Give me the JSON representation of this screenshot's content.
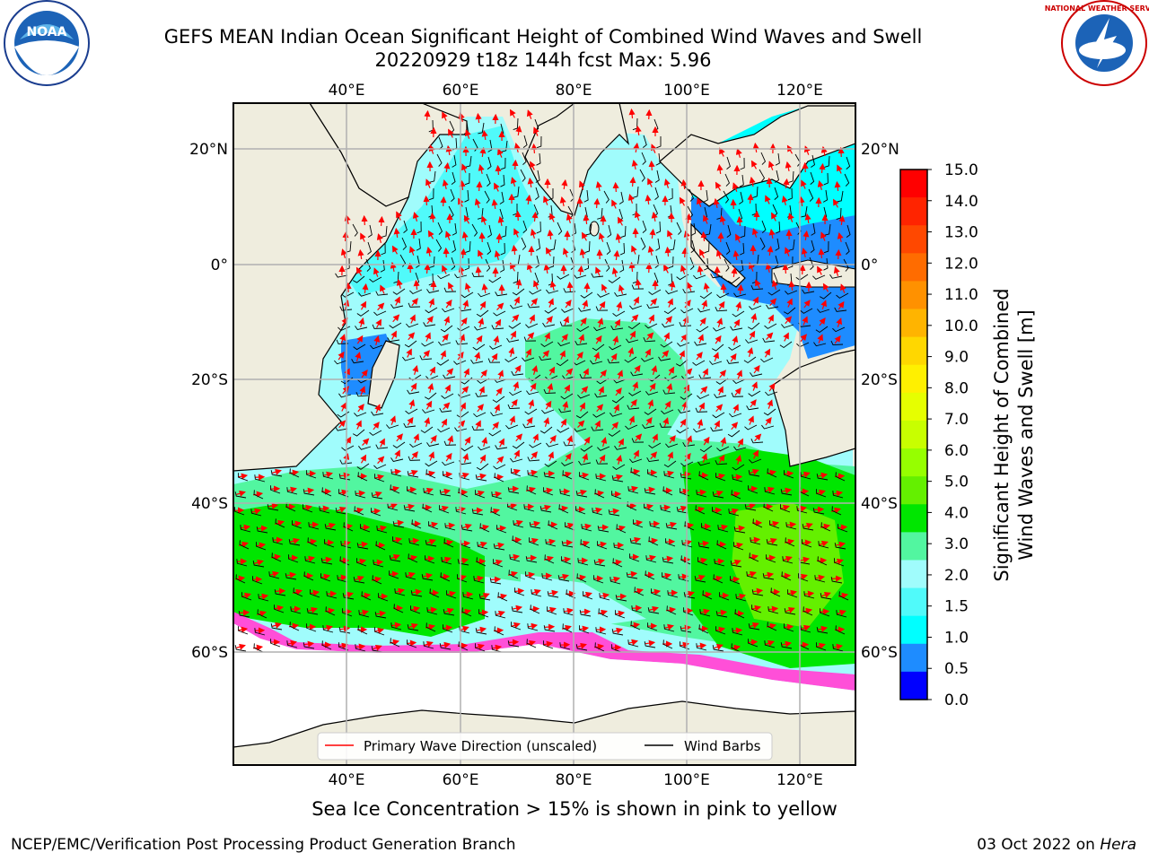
{
  "header": {
    "title_line1": "GEFS MEAN Indian Ocean Significant Height of Combined Wind Waves and Swell",
    "title_line2": "20220929 t18z 144h fcst   Max: 5.96",
    "left_logo_text": "NOAA",
    "right_logo_text": "NATIONAL WEATHER SERVICE"
  },
  "map": {
    "lon_ticks": [
      "40°E",
      "60°E",
      "80°E",
      "100°E",
      "120°E"
    ],
    "lat_ticks": [
      "20°N",
      "0°",
      "20°S",
      "40°S",
      "60°S"
    ],
    "colors": {
      "land": "#efedde",
      "ocean_low": "#8efcfc",
      "ocean_mid": "#52f6a0",
      "ocean_high": "#00e600",
      "ice": "#ffffff",
      "wave_arrow": "#ff0000",
      "wind_barb": "#000000"
    },
    "legend": {
      "wave": "Primary Wave Direction (unscaled)",
      "wind": "Wind Barbs"
    }
  },
  "colorbar": {
    "label_line1": "Significant Height of Combined",
    "label_line2": "Wind Waves and Swell [m]",
    "ticks": [
      "15.0",
      "14.0",
      "13.0",
      "12.0",
      "11.0",
      "10.0",
      "9.0",
      "8.0",
      "7.0",
      "6.0",
      "5.0",
      "4.0",
      "3.0",
      "2.0",
      "1.5",
      "1.0",
      "0.5",
      "0.0"
    ],
    "colors": [
      "#ff0000",
      "#ff2400",
      "#ff4800",
      "#ff6c00",
      "#ff9100",
      "#ffb400",
      "#ffd700",
      "#fff000",
      "#e6ff00",
      "#c8ff00",
      "#96ff00",
      "#64f000",
      "#00e600",
      "#52f6a0",
      "#a0fcfc",
      "#50fafa",
      "#00ffff",
      "#1e8cff",
      "#0000ff"
    ]
  },
  "footer": {
    "note": "Sea Ice Concentration > 15% is shown in pink to yellow",
    "left": "NCEP/EMC/Verification Post Processing Product Generation Branch",
    "date": "03 Oct 2022 on",
    "host": "Hera"
  }
}
